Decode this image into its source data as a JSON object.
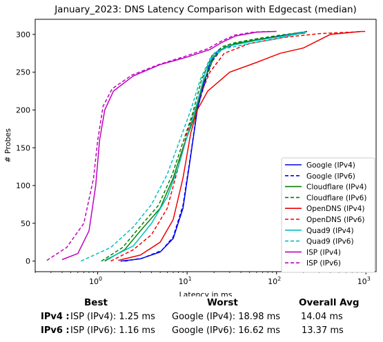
{
  "chart_data": {
    "type": "line",
    "title": "January_2023: DNS Latency Comparison with Edgecast (median)",
    "xlabel": "Latency in ms",
    "ylabel": "# Probes",
    "xscale": "log",
    "xlim": [
      0.2,
      1300
    ],
    "ylim": [
      -14,
      320
    ],
    "xticks": [
      {
        "value": 1,
        "label": "10^0"
      },
      {
        "value": 10,
        "label": "10^1"
      },
      {
        "value": 100,
        "label": "10^2"
      },
      {
        "value": 1000,
        "label": "10^3"
      }
    ],
    "yticks": [
      0,
      50,
      100,
      150,
      200,
      250,
      300
    ],
    "grid": false,
    "legend_position": "lower-right",
    "series": [
      {
        "name": "Google (IPv4)",
        "color": "#0000ee",
        "dash": "solid",
        "points": [
          [
            1.8,
            0
          ],
          [
            3,
            3
          ],
          [
            5,
            12
          ],
          [
            7,
            30
          ],
          [
            9,
            70
          ],
          [
            11,
            140
          ],
          [
            13,
            200
          ],
          [
            15,
            230
          ],
          [
            18,
            262
          ],
          [
            22,
            278
          ],
          [
            30,
            285
          ],
          [
            60,
            293
          ],
          [
            110,
            298
          ],
          [
            200,
            303
          ]
        ]
      },
      {
        "name": "Google (IPv6)",
        "color": "#0000ee",
        "dash": "dashed",
        "points": [
          [
            2,
            0
          ],
          [
            3.2,
            4
          ],
          [
            5.2,
            14
          ],
          [
            7,
            32
          ],
          [
            9,
            74
          ],
          [
            11,
            142
          ],
          [
            13,
            202
          ],
          [
            16,
            238
          ],
          [
            19,
            264
          ],
          [
            24,
            280
          ],
          [
            35,
            287
          ],
          [
            70,
            294
          ],
          [
            150,
            300
          ],
          [
            220,
            304
          ]
        ]
      },
      {
        "name": "Cloudflare (IPv4)",
        "color": "#008000",
        "dash": "solid",
        "points": [
          [
            1.2,
            0
          ],
          [
            2,
            15
          ],
          [
            3,
            40
          ],
          [
            5,
            70
          ],
          [
            7,
            110
          ],
          [
            9,
            150
          ],
          [
            12,
            190
          ],
          [
            15,
            235
          ],
          [
            20,
            270
          ],
          [
            26,
            283
          ],
          [
            35,
            288
          ],
          [
            60,
            293
          ],
          [
            120,
            298
          ],
          [
            210,
            302
          ]
        ]
      },
      {
        "name": "Cloudflare (IPv6)",
        "color": "#008000",
        "dash": "dashed",
        "points": [
          [
            1.1,
            0
          ],
          [
            1.9,
            18
          ],
          [
            2.9,
            44
          ],
          [
            4.8,
            74
          ],
          [
            6.8,
            114
          ],
          [
            8.8,
            154
          ],
          [
            11.5,
            195
          ],
          [
            14.5,
            240
          ],
          [
            19,
            272
          ],
          [
            25,
            284
          ],
          [
            34,
            289
          ],
          [
            58,
            294
          ],
          [
            110,
            299
          ],
          [
            200,
            303
          ]
        ]
      },
      {
        "name": "OpenDNS (IPv4)",
        "color": "#ee0000",
        "dash": "solid",
        "points": [
          [
            1.7,
            1
          ],
          [
            3,
            8
          ],
          [
            5,
            25
          ],
          [
            7,
            55
          ],
          [
            9,
            110
          ],
          [
            11,
            170
          ],
          [
            13,
            200
          ],
          [
            17,
            225
          ],
          [
            30,
            250
          ],
          [
            60,
            263
          ],
          [
            110,
            275
          ],
          [
            200,
            282
          ],
          [
            400,
            300
          ],
          [
            900,
            304
          ]
        ]
      },
      {
        "name": "OpenDNS (IPv6)",
        "color": "#ee0000",
        "dash": "dashed",
        "points": [
          [
            1.4,
            0
          ],
          [
            2.5,
            15
          ],
          [
            4,
            35
          ],
          [
            6,
            70
          ],
          [
            8,
            125
          ],
          [
            10,
            170
          ],
          [
            13,
            210
          ],
          [
            18,
            250
          ],
          [
            26,
            275
          ],
          [
            50,
            288
          ],
          [
            120,
            296
          ],
          [
            300,
            301
          ],
          [
            1000,
            304
          ]
        ]
      },
      {
        "name": "Quad9 (IPv4)",
        "color": "#00bfbf",
        "dash": "solid",
        "points": [
          [
            1.2,
            1
          ],
          [
            2.5,
            20
          ],
          [
            4,
            50
          ],
          [
            6,
            85
          ],
          [
            8,
            125
          ],
          [
            10,
            165
          ],
          [
            13,
            210
          ],
          [
            16,
            250
          ],
          [
            20,
            275
          ],
          [
            30,
            285
          ],
          [
            60,
            292
          ],
          [
            110,
            297
          ],
          [
            210,
            303
          ]
        ]
      },
      {
        "name": "Quad9 (IPv6)",
        "color": "#00bfbf",
        "dash": "dashed",
        "points": [
          [
            0.65,
            0
          ],
          [
            1.4,
            18
          ],
          [
            2.5,
            45
          ],
          [
            4,
            75
          ],
          [
            6,
            115
          ],
          [
            8,
            155
          ],
          [
            11,
            200
          ],
          [
            14,
            240
          ],
          [
            18,
            268
          ],
          [
            26,
            281
          ],
          [
            50,
            288
          ],
          [
            100,
            294
          ],
          [
            230,
            304
          ]
        ]
      },
      {
        "name": "ISP (IPv4)",
        "color": "#bf00bf",
        "dash": "solid",
        "points": [
          [
            0.4,
            2
          ],
          [
            0.6,
            10
          ],
          [
            0.8,
            40
          ],
          [
            0.95,
            100
          ],
          [
            1.05,
            160
          ],
          [
            1.2,
            200
          ],
          [
            1.5,
            225
          ],
          [
            2.5,
            245
          ],
          [
            5,
            260
          ],
          [
            10,
            270
          ],
          [
            18,
            280
          ],
          [
            25,
            290
          ],
          [
            35,
            298
          ],
          [
            60,
            303
          ],
          [
            100,
            304
          ]
        ]
      },
      {
        "name": "ISP (IPv6)",
        "color": "#bf00bf",
        "dash": "dashed",
        "points": [
          [
            0.27,
            1
          ],
          [
            0.45,
            18
          ],
          [
            0.7,
            50
          ],
          [
            0.9,
            110
          ],
          [
            1.0,
            160
          ],
          [
            1.15,
            205
          ],
          [
            1.45,
            228
          ],
          [
            2.4,
            246
          ],
          [
            4.8,
            260
          ],
          [
            9.5,
            271
          ],
          [
            17,
            281
          ],
          [
            24,
            291
          ],
          [
            34,
            299
          ],
          [
            55,
            303
          ],
          [
            90,
            304
          ]
        ]
      }
    ]
  },
  "summary": {
    "headers": {
      "best": "Best",
      "worst": "Worst",
      "overall": "Overall Avg"
    },
    "rows": [
      {
        "label": "IPv4 :",
        "best": "ISP (IPv4): 1.25 ms",
        "worst": "Google (IPv4): 18.98 ms",
        "overall": "14.04 ms"
      },
      {
        "label": "IPv6 :",
        "best": "ISP (IPv6): 1.16 ms",
        "worst": "Google (IPv6): 16.62 ms",
        "overall": "13.37 ms"
      }
    ]
  }
}
